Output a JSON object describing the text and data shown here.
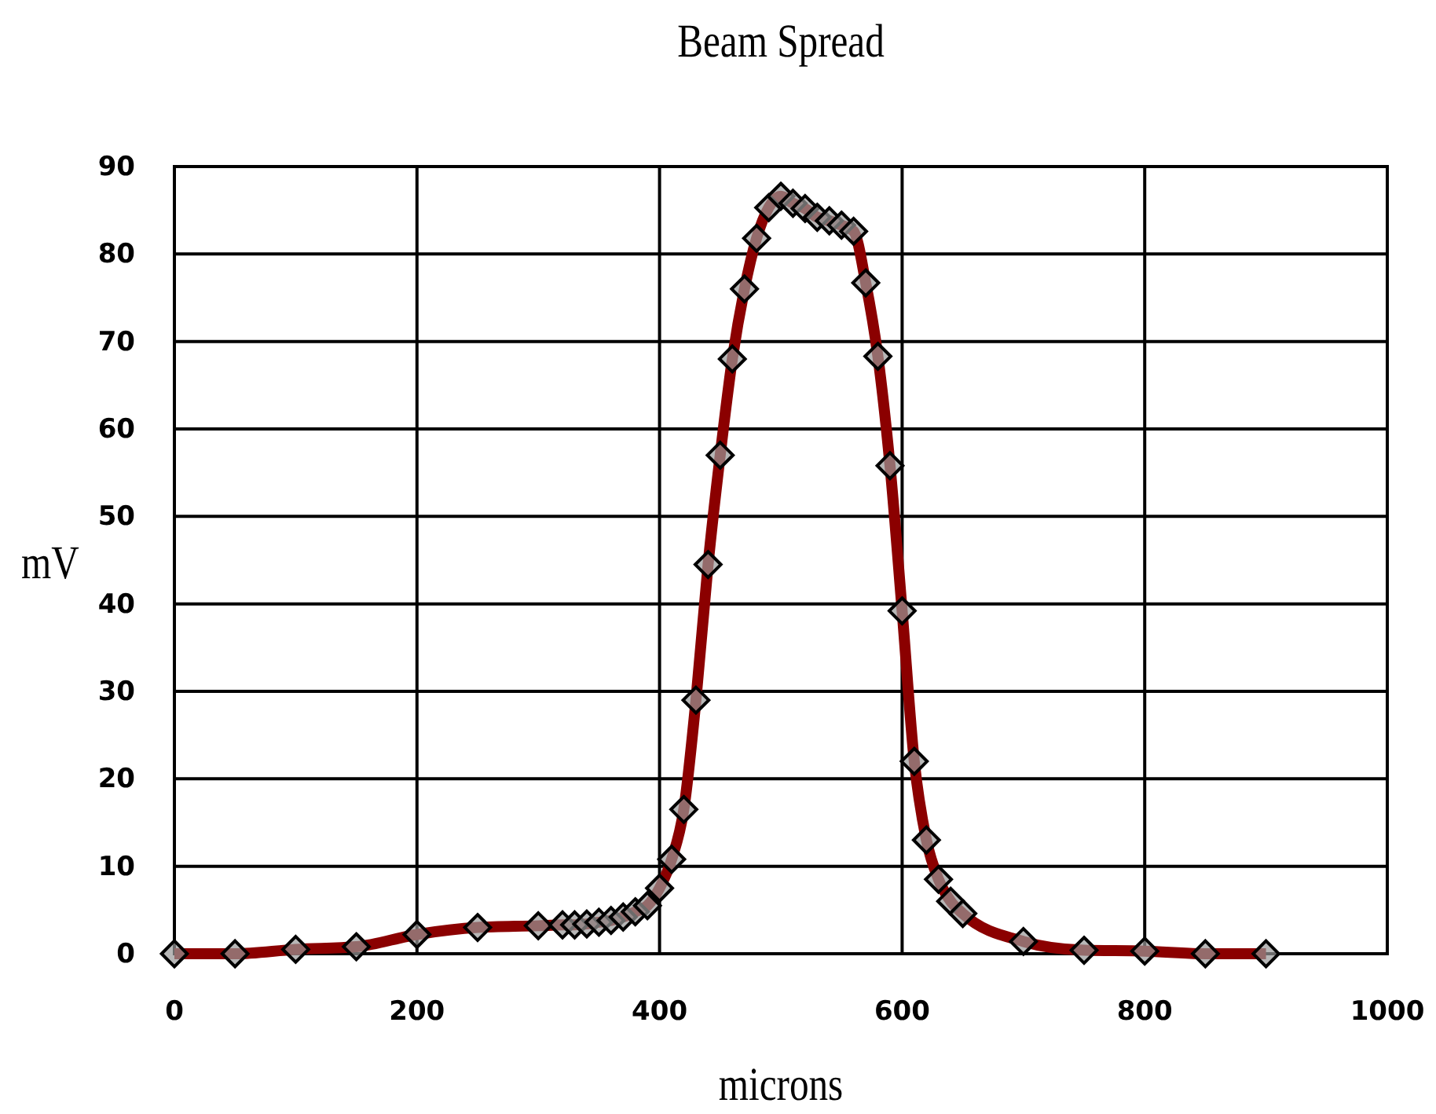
{
  "chart_data": {
    "type": "line",
    "title": "Beam Spread",
    "xlabel": "microns",
    "ylabel": "mV",
    "x": [
      0,
      50,
      100,
      150,
      200,
      250,
      300,
      320,
      330,
      340,
      350,
      360,
      370,
      380,
      390,
      400,
      410,
      420,
      430,
      440,
      450,
      460,
      470,
      480,
      490,
      500,
      510,
      520,
      530,
      540,
      550,
      560,
      570,
      580,
      590,
      600,
      610,
      620,
      630,
      640,
      650,
      700,
      750,
      800,
      850,
      900
    ],
    "series": [
      {
        "color": "#8b0000",
        "values": [
          0,
          0,
          0.5,
          0.8,
          2.2,
          3,
          3.2,
          3.3,
          3.3,
          3.4,
          3.6,
          3.8,
          4.2,
          4.8,
          5.5,
          7.5,
          10.8,
          16.5,
          29,
          44.5,
          57,
          68,
          76,
          81.8,
          85.3,
          86.6,
          85.8,
          85.2,
          84.2,
          83.8,
          83.3,
          82.6,
          76.7,
          68.3,
          55.8,
          39.2,
          22,
          13,
          8.5,
          6,
          4.6,
          1.4,
          0.4,
          0.3,
          0,
          0
        ]
      }
    ],
    "xlim": [
      0,
      1000
    ],
    "xticks": [
      0,
      200,
      400,
      600,
      800,
      1000
    ],
    "ylim": [
      0,
      90
    ],
    "yticks": [
      0,
      10,
      20,
      30,
      40,
      50,
      60,
      70,
      80,
      90
    ],
    "grid": true,
    "marker": "diamond",
    "line_style": "solid"
  }
}
